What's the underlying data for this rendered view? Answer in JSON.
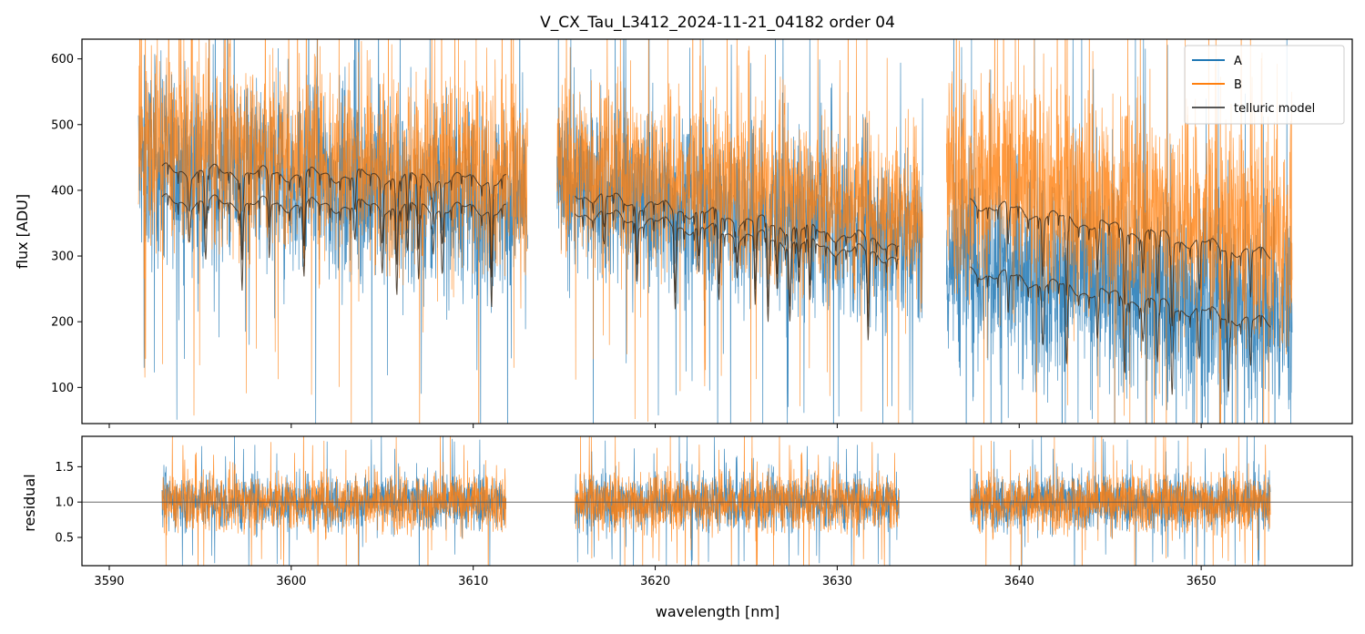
{
  "chart_data": [
    {
      "type": "line",
      "title": "V_CX_Tau_L3412_2024-11-21_04182  order 04",
      "xlabel": "",
      "ylabel": "flux [ADU]",
      "xlim": [
        3588.5,
        3658.3
      ],
      "ylim": [
        45,
        630
      ],
      "yticks": [
        100,
        200,
        300,
        400,
        500,
        600
      ],
      "xticks": [
        3590,
        3600,
        3610,
        3620,
        3630,
        3640,
        3650
      ],
      "grid": false,
      "legend_position": "top-right",
      "legend": [
        "A",
        "B",
        "telluric model"
      ],
      "colors": {
        "A": "#1f77b4",
        "B": "#ff7f0e",
        "telluric model": "#3a2a1a"
      },
      "series": [
        {
          "name": "A",
          "segments": [
            {
              "x_range": [
                3591.6,
                3613.0
              ],
              "level_start": 440,
              "level_end": 380,
              "scatter": 105
            },
            {
              "x_range": [
                3614.6,
                3634.7
              ],
              "level_start": 405,
              "level_end": 320,
              "scatter": 95
            },
            {
              "x_range": [
                3636.0,
                3655.0
              ],
              "level_start": 300,
              "level_end": 210,
              "scatter": 120
            }
          ]
        },
        {
          "name": "B",
          "segments": [
            {
              "x_range": [
                3591.6,
                3613.0
              ],
              "level_start": 470,
              "level_end": 420,
              "scatter": 110
            },
            {
              "x_range": [
                3614.6,
                3634.7
              ],
              "level_start": 440,
              "level_end": 360,
              "scatter": 95
            },
            {
              "x_range": [
                3636.0,
                3655.0
              ],
              "level_start": 430,
              "level_end": 320,
              "scatter": 120
            }
          ]
        },
        {
          "name": "telluric model",
          "curves": [
            {
              "x_range": [
                3592.9,
                3611.8
              ],
              "start": 430,
              "end": 415,
              "absorption_lines": [
                3594.4,
                3595.3,
                3597.3,
                3598.8,
                3600.7,
                3603.5,
                3605.0,
                3605.8,
                3606.4,
                3607.0,
                3607.8,
                3608.3,
                3611.0
              ]
            },
            {
              "x_range": [
                3592.9,
                3611.8
              ],
              "start": 383,
              "end": 370,
              "absorption_lines": [
                3594.4,
                3595.3,
                3597.3,
                3598.8,
                3600.7,
                3603.5,
                3605.0,
                3605.8,
                3606.4,
                3607.0,
                3607.8,
                3608.3,
                3611.0
              ]
            },
            {
              "x_range": [
                3615.6,
                3633.4
              ],
              "start": 395,
              "end": 318,
              "absorption_lines": [
                3617.2,
                3619.0,
                3621.1,
                3622.4,
                3623.5,
                3624.5,
                3625.5,
                3626.2,
                3626.7,
                3627.4,
                3627.9,
                3628.5,
                3631.7
              ]
            },
            {
              "x_range": [
                3615.6,
                3633.4
              ],
              "start": 368,
              "end": 298,
              "absorption_lines": [
                3617.2,
                3619.0,
                3621.1,
                3622.4,
                3623.5,
                3624.5,
                3625.5,
                3626.2,
                3626.7,
                3627.4,
                3627.9,
                3628.5,
                3631.7
              ]
            },
            {
              "x_range": [
                3637.3,
                3653.8
              ],
              "start": 382,
              "end": 300,
              "absorption_lines": [
                3639.4,
                3641.3,
                3642.6,
                3644.3,
                3645.8,
                3646.8,
                3647.6,
                3648.4,
                3649.9,
                3651.5,
                3652.7
              ]
            },
            {
              "x_range": [
                3637.3,
                3653.8
              ],
              "start": 278,
              "end": 196,
              "absorption_lines": [
                3639.4,
                3641.3,
                3642.6,
                3644.3,
                3645.8,
                3646.8,
                3647.6,
                3648.4,
                3649.9,
                3651.5,
                3652.7
              ]
            }
          ]
        }
      ]
    },
    {
      "type": "line",
      "title": "",
      "xlabel": "wavelength [nm]",
      "ylabel": "residual",
      "xlim": [
        3588.5,
        3658.3
      ],
      "ylim": [
        0.1,
        1.93
      ],
      "yticks": [
        0.5,
        1.0,
        1.5
      ],
      "ytick_labels": [
        "0.5",
        "1.0",
        "1.5"
      ],
      "xticks": [
        3590,
        3600,
        3610,
        3620,
        3630,
        3640,
        3650
      ],
      "reference_line": 1.0,
      "series": [
        {
          "name": "A",
          "segments": [
            [
              3592.9,
              3611.8
            ],
            [
              3615.6,
              3633.4
            ],
            [
              3637.3,
              3653.8
            ]
          ],
          "mean": 1.0,
          "scatter": 0.28
        },
        {
          "name": "B",
          "segments": [
            [
              3592.9,
              3611.8
            ],
            [
              3615.6,
              3633.4
            ],
            [
              3637.3,
              3653.8
            ]
          ],
          "mean": 1.0,
          "scatter": 0.3
        }
      ]
    }
  ]
}
